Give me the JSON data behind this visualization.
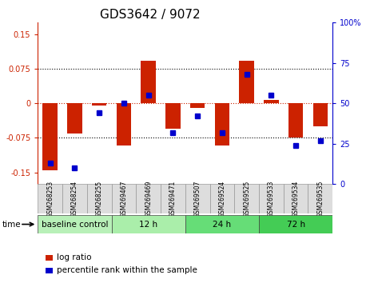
{
  "title": "GDS3642 / 9072",
  "samples": [
    "GSM268253",
    "GSM268254",
    "GSM268255",
    "GSM269467",
    "GSM269469",
    "GSM269471",
    "GSM269507",
    "GSM269524",
    "GSM269525",
    "GSM269533",
    "GSM269534",
    "GSM269535"
  ],
  "log_ratio": [
    -0.145,
    -0.065,
    -0.005,
    -0.092,
    0.093,
    -0.055,
    -0.01,
    -0.092,
    0.093,
    0.008,
    -0.075,
    -0.05
  ],
  "percentile_rank": [
    13,
    10,
    44,
    50,
    55,
    32,
    42,
    32,
    68,
    55,
    24,
    27
  ],
  "groups": [
    {
      "label": "baseline control",
      "start": 0,
      "end": 3
    },
    {
      "label": "12 h",
      "start": 3,
      "end": 6
    },
    {
      "label": "24 h",
      "start": 6,
      "end": 9
    },
    {
      "label": "72 h",
      "start": 9,
      "end": 12
    }
  ],
  "group_colors": [
    "#b8f0b8",
    "#aaeeaa",
    "#66dd77",
    "#44cc55"
  ],
  "ylim_left": [
    -0.175,
    0.175
  ],
  "ylim_right": [
    0,
    100
  ],
  "left_ticks": [
    -0.15,
    -0.075,
    0,
    0.075,
    0.15
  ],
  "left_tick_labels": [
    "-0.15",
    "-0.075",
    "0",
    "0.075",
    "0.15"
  ],
  "right_ticks": [
    0,
    25,
    50,
    75,
    100
  ],
  "right_tick_labels": [
    "0",
    "25",
    "50",
    "75",
    "100%"
  ],
  "bar_color": "#cc2200",
  "dot_color": "#0000cc",
  "title_fontsize": 11,
  "tick_fontsize": 7,
  "sample_fontsize": 5.5,
  "group_fontsize": 7.5,
  "legend_fontsize": 7.5
}
